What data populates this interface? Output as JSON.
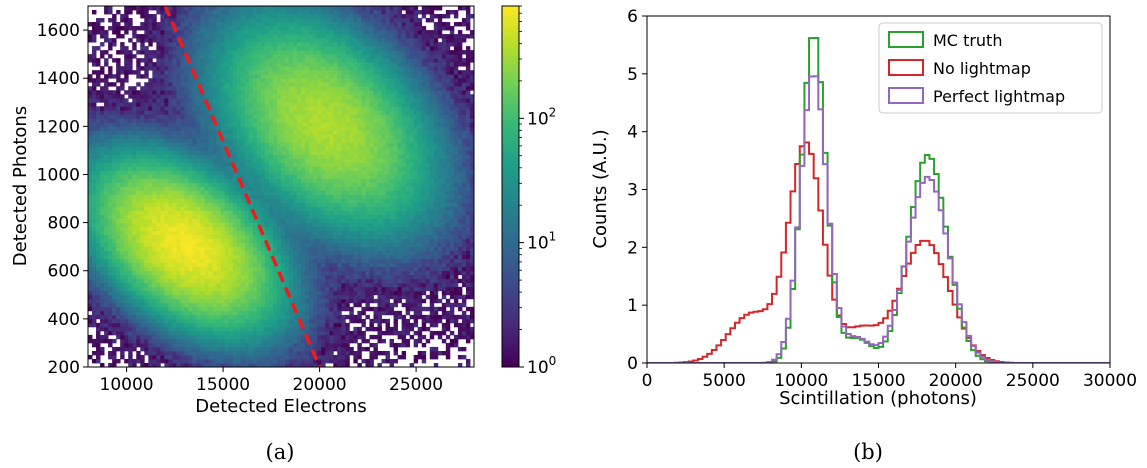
{
  "chart_data": [
    {
      "type": "heatmap",
      "caption": "(a)",
      "xlabel": "Detected Electrons",
      "ylabel": "Detected Photons",
      "xlim": [
        8000,
        28000
      ],
      "ylim": [
        200,
        1700
      ],
      "xticks": [
        10000,
        15000,
        20000,
        25000
      ],
      "yticks": [
        200,
        400,
        600,
        800,
        1000,
        1200,
        1400,
        1600
      ],
      "colorbar": {
        "scale": "log",
        "range": [
          1,
          800
        ],
        "tick_labels": [
          {
            "base": "10",
            "exp": "0",
            "value": 1
          },
          {
            "base": "10",
            "exp": "1",
            "value": 10
          },
          {
            "base": "10",
            "exp": "2",
            "value": 100
          }
        ],
        "colors": [
          "#440154",
          "#482878",
          "#3e4989",
          "#31688e",
          "#26828e",
          "#1f9e89",
          "#35b779",
          "#6ece58",
          "#b5de2b",
          "#fde725"
        ]
      },
      "clusters": [
        {
          "center": [
            13000,
            710
          ],
          "peak_counts": 700
        },
        {
          "center": [
            20300,
            1210
          ],
          "peak_counts": 350
        }
      ],
      "cut_line": {
        "points": [
          [
            12000,
            1700
          ],
          [
            20000,
            200
          ]
        ],
        "color": "#ee1c1c",
        "style": "dashed"
      }
    },
    {
      "type": "line",
      "caption": "(b)",
      "xlabel": "Scintillation (photons)",
      "ylabel": "Counts (A.U.)",
      "xlim": [
        0,
        30000
      ],
      "ylim": [
        0,
        6
      ],
      "xticks": [
        0,
        5000,
        10000,
        15000,
        20000,
        25000,
        30000
      ],
      "yticks": [
        0,
        1,
        2,
        3,
        4,
        5,
        6
      ],
      "legend_position": "top-right",
      "series": [
        {
          "name": "MC truth",
          "color": "#2ca02c",
          "peaks": [
            {
              "x": 10800,
              "height": 5.72
            },
            {
              "x": 18200,
              "height": 3.6
            }
          ]
        },
        {
          "name": "No lightmap",
          "color": "#d62728",
          "peaks": [
            {
              "x": 10300,
              "height": 3.76
            },
            {
              "x": 18000,
              "height": 2.12
            }
          ]
        },
        {
          "name": "Perfect lightmap",
          "color": "#9467bd",
          "peaks": [
            {
              "x": 10800,
              "height": 5.03
            },
            {
              "x": 18200,
              "height": 3.22
            }
          ]
        }
      ]
    }
  ]
}
